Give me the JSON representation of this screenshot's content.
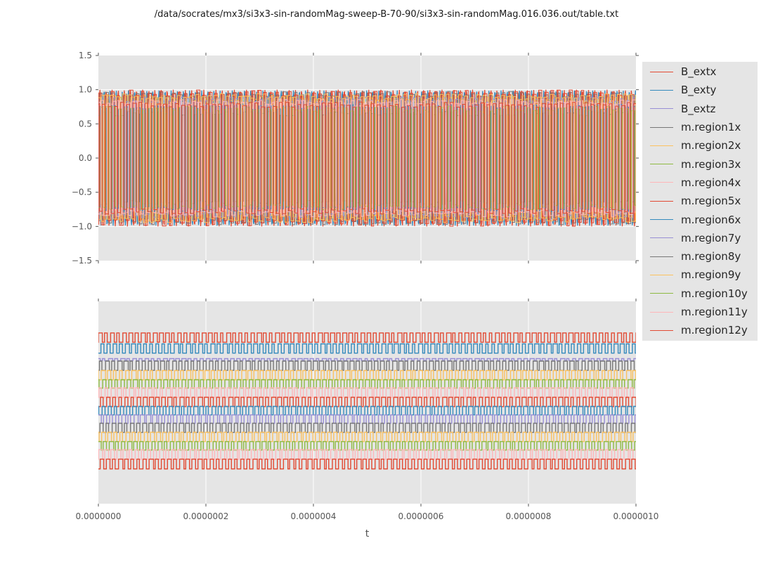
{
  "title": "/data/socrates/mx3/si3x3-sin-randomMag-sweep-B-70-90/si3x3-sin-randomMag.016.036.out/table.txt",
  "style": {
    "figure_bg": "#ffffff",
    "panel_bg": "#e5e5e5",
    "grid_color": "#ffffff",
    "tick_text_color": "#555555",
    "axis_label_color": "#555555",
    "legend_bg": "#e5e5e5",
    "legend_text_color": "#262626",
    "title_text_color": "#1a1a1a"
  },
  "legend": {
    "entries": [
      {
        "label": "B_extx",
        "color": "#e24a33"
      },
      {
        "label": "B_exty",
        "color": "#348abd"
      },
      {
        "label": "B_extz",
        "color": "#988ed5"
      },
      {
        "label": "m.region1x",
        "color": "#777777"
      },
      {
        "label": "m.region2x",
        "color": "#fbc15e"
      },
      {
        "label": "m.region3x",
        "color": "#8eba42"
      },
      {
        "label": "m.region4x",
        "color": "#ffb5b8"
      },
      {
        "label": "m.region5x",
        "color": "#e24a33"
      },
      {
        "label": "m.region6x",
        "color": "#348abd"
      },
      {
        "label": "m.region7y",
        "color": "#988ed5"
      },
      {
        "label": "m.region8y",
        "color": "#777777"
      },
      {
        "label": "m.region9y",
        "color": "#fbc15e"
      },
      {
        "label": "m.region10y",
        "color": "#8eba42"
      },
      {
        "label": "m.region11y",
        "color": "#ffb5b8"
      },
      {
        "label": "m.region12y",
        "color": "#e24a33"
      }
    ]
  },
  "chart_data": {
    "type": "line",
    "xlabel": "t",
    "x_range_s": [
      0.0,
      1e-06
    ],
    "x_tick_labels": [
      "0.0000000",
      "0.0000002",
      "0.0000004",
      "0.0000006",
      "0.0000008",
      "0.0000010"
    ],
    "approx_cycles_shown": 88,
    "grid": true,
    "legend_position": "upper right, outside plot",
    "top_panel": {
      "ylim": [
        -1.5,
        1.5
      ],
      "y_tick_labels": [
        "1.5",
        "1.0",
        "0.5",
        "0.0",
        "−0.5",
        "−1.0",
        "−1.5"
      ],
      "description": "all signals oscillate between -1 and 1; B_ext are sinusoids, m.region are square-like flips with plateaus between 0.6 and 1.0 in magnitude",
      "series": [
        {
          "label": "B_extx",
          "color": "#e24a33",
          "waveform": "sine",
          "amplitude": 1.0,
          "phase": 0.0
        },
        {
          "label": "B_exty",
          "color": "#348abd",
          "waveform": "sine",
          "amplitude": 0.99,
          "phase": 2.1
        },
        {
          "label": "B_extz",
          "color": "#988ed5",
          "waveform": "sine",
          "amplitude": 0.66,
          "phase": 4.2
        },
        {
          "label": "m.region1x",
          "color": "#777777",
          "waveform": "square",
          "amplitude": 0.93,
          "phase": 0.9
        },
        {
          "label": "m.region2x",
          "color": "#fbc15e",
          "waveform": "square",
          "amplitude": 0.88,
          "phase": 2.3
        },
        {
          "label": "m.region3x",
          "color": "#8eba42",
          "waveform": "square",
          "amplitude": 0.7,
          "phase": 3.6
        },
        {
          "label": "m.region4x",
          "color": "#ffb5b8",
          "waveform": "square",
          "amplitude": 0.8,
          "phase": 5.0
        },
        {
          "label": "m.region5x",
          "color": "#e24a33",
          "waveform": "square",
          "amplitude": 0.95,
          "phase": 0.4
        },
        {
          "label": "m.region6x",
          "color": "#348abd",
          "waveform": "square",
          "amplitude": 0.75,
          "phase": 1.8
        },
        {
          "label": "m.region7y",
          "color": "#988ed5",
          "waveform": "square",
          "amplitude": 0.85,
          "phase": 3.1
        },
        {
          "label": "m.region8y",
          "color": "#777777",
          "waveform": "square",
          "amplitude": 0.65,
          "phase": 4.5
        },
        {
          "label": "m.region9y",
          "color": "#fbc15e",
          "waveform": "square",
          "amplitude": 0.9,
          "phase": 5.9
        },
        {
          "label": "m.region10y",
          "color": "#8eba42",
          "waveform": "square",
          "amplitude": 0.72,
          "phase": 1.2
        },
        {
          "label": "m.region11y",
          "color": "#ffb5b8",
          "waveform": "square",
          "amplitude": 0.82,
          "phase": 2.6
        },
        {
          "label": "m.region12y",
          "color": "#e24a33",
          "waveform": "square",
          "amplitude": 0.78,
          "phase": 4.0
        }
      ]
    },
    "bottom_panel": {
      "y_tick_labels": [],
      "description": "same 15 signals shown as stacked square waves in legend order, top to bottom; vertical position given as fraction of panel height",
      "series": [
        {
          "label": "B_extx",
          "color": "#e24a33",
          "waveform": "square",
          "center_frac": 0.821,
          "half_frac": 0.023,
          "phase": 0.0
        },
        {
          "label": "B_exty",
          "color": "#348abd",
          "waveform": "square",
          "center_frac": 0.767,
          "half_frac": 0.023,
          "phase": 2.6
        },
        {
          "label": "B_extz",
          "color": "#988ed5",
          "waveform": "square",
          "center_frac": 0.712,
          "half_frac": 0.005,
          "phase": 4.1
        },
        {
          "label": "m.region1x",
          "color": "#777777",
          "waveform": "square",
          "center_frac": 0.682,
          "half_frac": 0.023,
          "phase": 1.1
        },
        {
          "label": "m.region2x",
          "color": "#fbc15e",
          "waveform": "square",
          "center_frac": 0.635,
          "half_frac": 0.023,
          "phase": 2.9
        },
        {
          "label": "m.region3x",
          "color": "#8eba42",
          "waveform": "square",
          "center_frac": 0.592,
          "half_frac": 0.021,
          "phase": 4.4
        },
        {
          "label": "m.region4x",
          "color": "#ffb5b8",
          "waveform": "square",
          "center_frac": 0.549,
          "half_frac": 0.024,
          "phase": 0.6
        },
        {
          "label": "m.region5x",
          "color": "#e24a33",
          "waveform": "square",
          "center_frac": 0.503,
          "half_frac": 0.023,
          "phase": 2.2
        },
        {
          "label": "m.region6x",
          "color": "#348abd",
          "waveform": "square",
          "center_frac": 0.46,
          "half_frac": 0.021,
          "phase": 3.8
        },
        {
          "label": "m.region7y",
          "color": "#988ed5",
          "waveform": "square",
          "center_frac": 0.418,
          "half_frac": 0.021,
          "phase": 5.3
        },
        {
          "label": "m.region8y",
          "color": "#777777",
          "waveform": "square",
          "center_frac": 0.375,
          "half_frac": 0.023,
          "phase": 1.6
        },
        {
          "label": "m.region9y",
          "color": "#fbc15e",
          "waveform": "square",
          "center_frac": 0.33,
          "half_frac": 0.023,
          "phase": 3.3
        },
        {
          "label": "m.region10y",
          "color": "#8eba42",
          "waveform": "square",
          "center_frac": 0.286,
          "half_frac": 0.021,
          "phase": 4.9
        },
        {
          "label": "m.region11y",
          "color": "#ffb5b8",
          "waveform": "square",
          "center_frac": 0.243,
          "half_frac": 0.024,
          "phase": 0.2
        },
        {
          "label": "m.region12y",
          "color": "#e24a33",
          "waveform": "square",
          "center_frac": 0.196,
          "half_frac": 0.024,
          "phase": 1.9
        }
      ]
    }
  }
}
